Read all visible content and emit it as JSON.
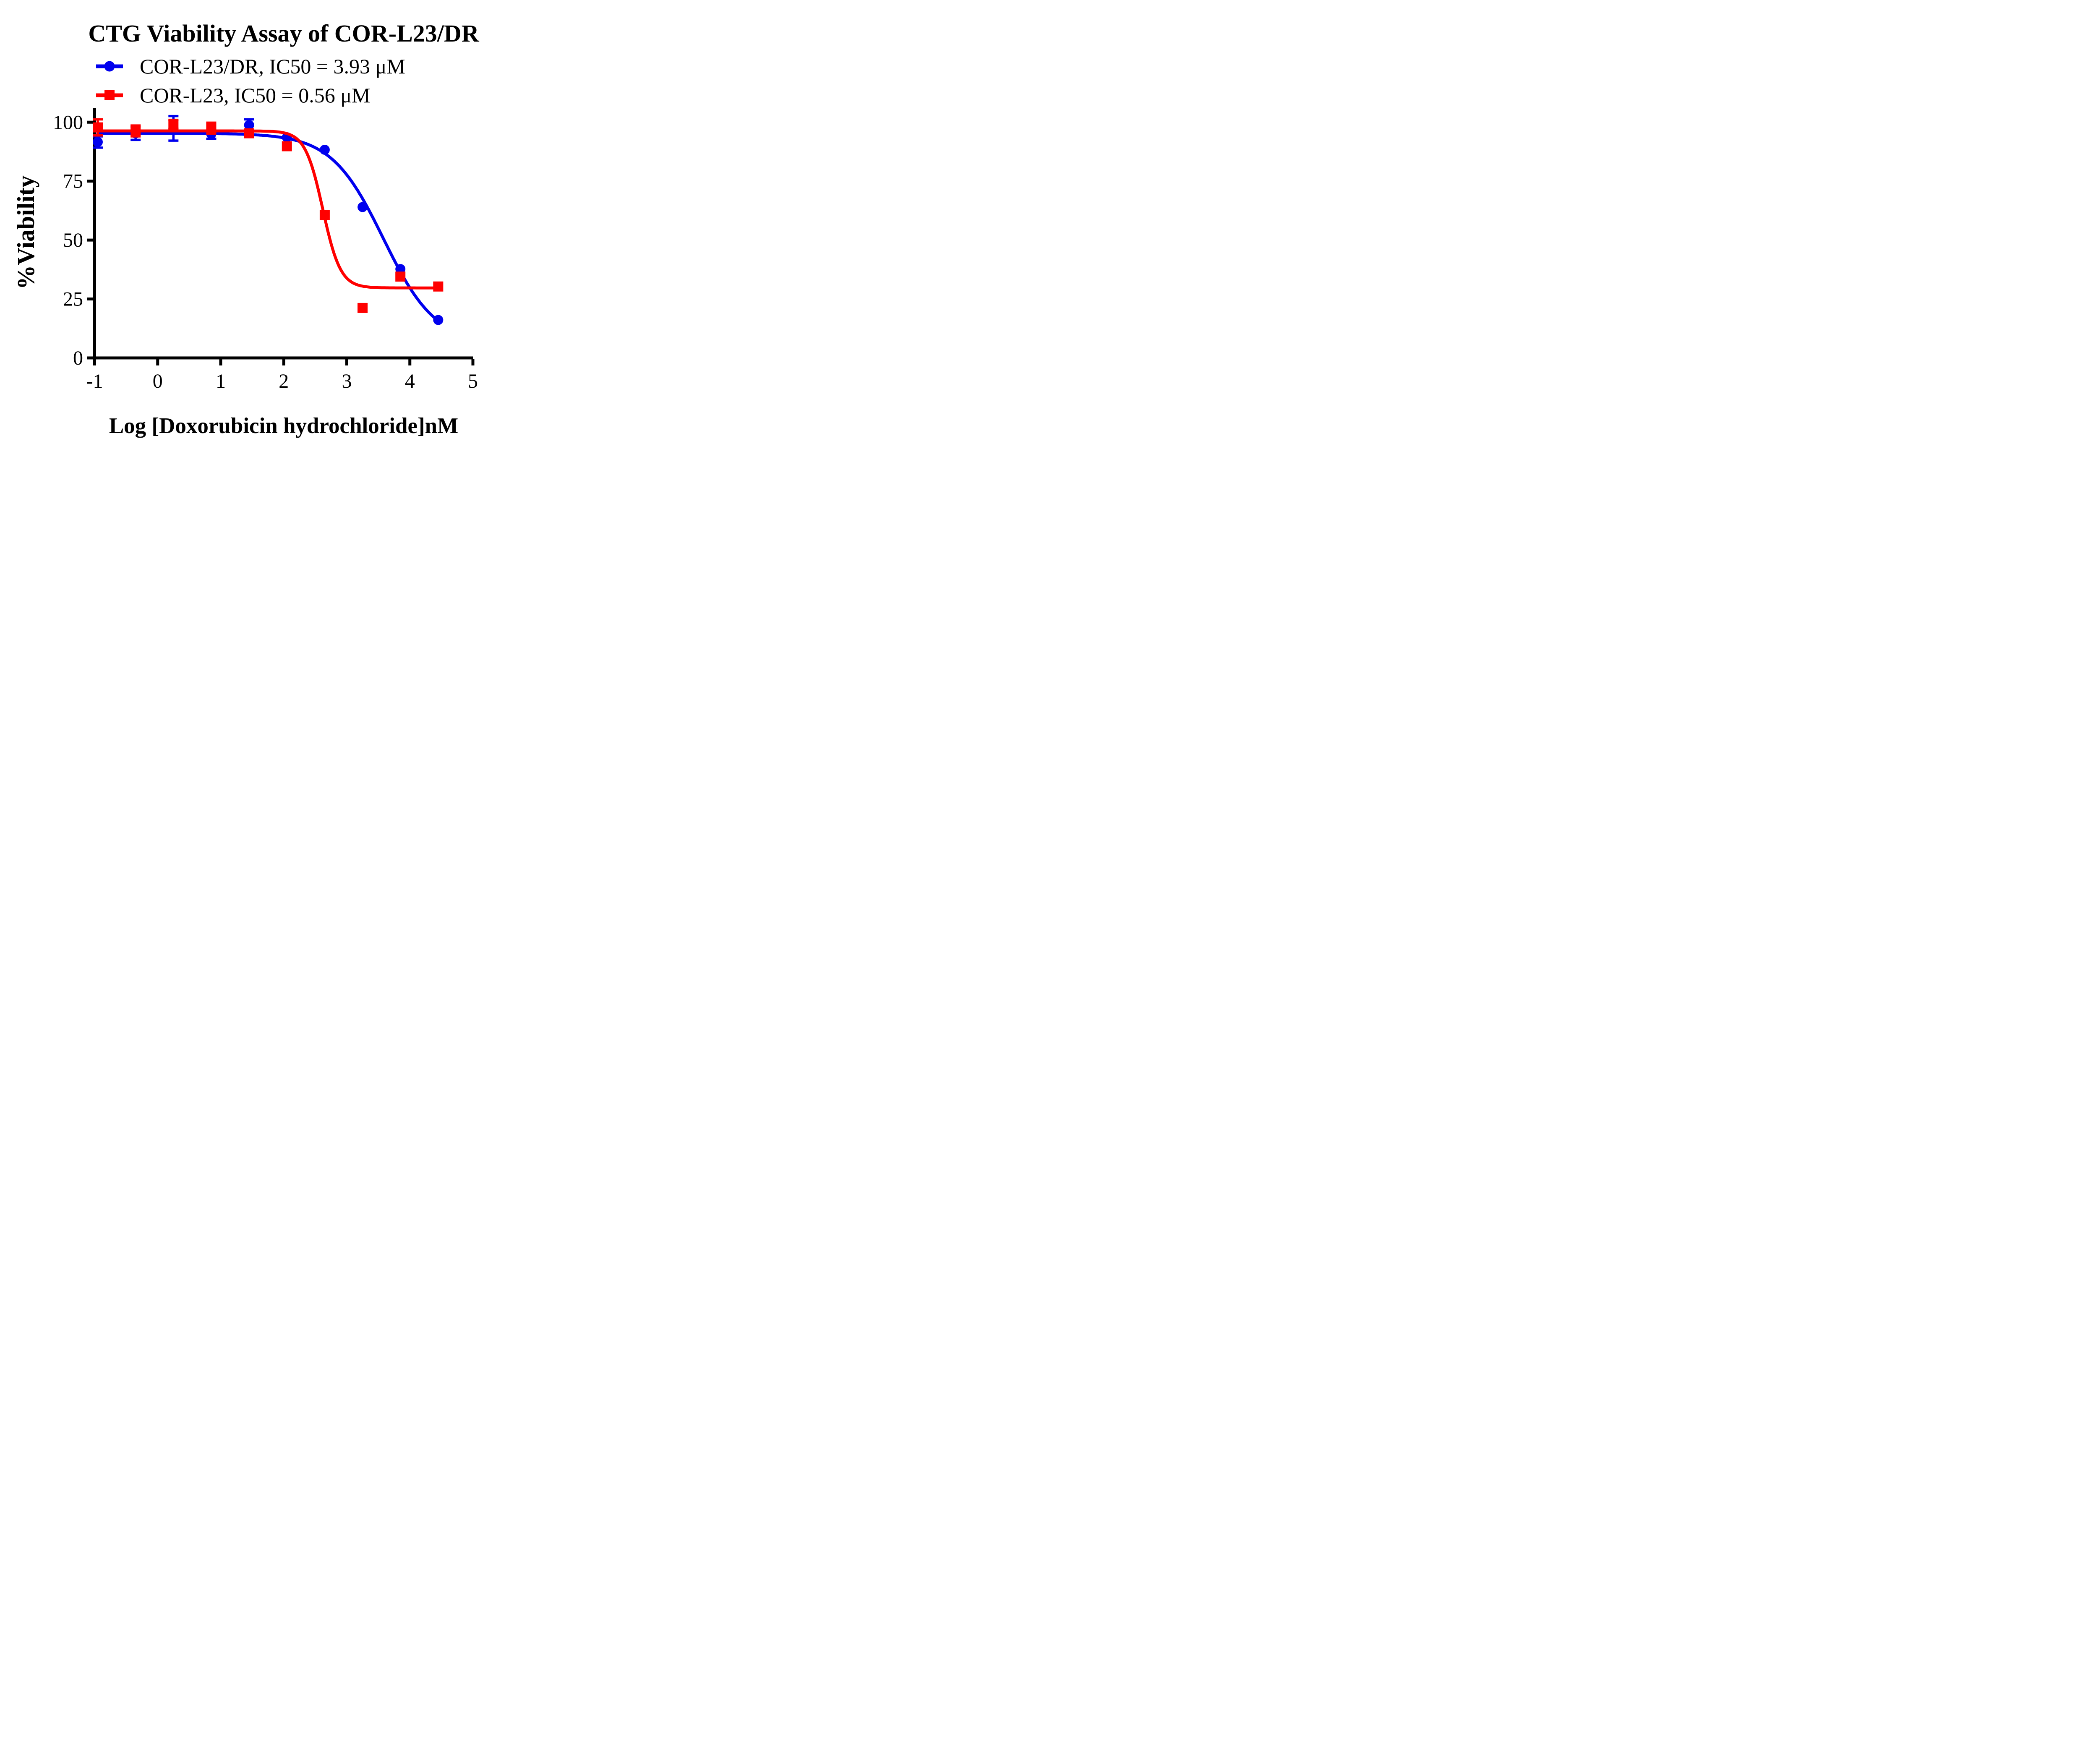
{
  "title": "CTG Viability Assay of COR-L23/DR",
  "colors": {
    "series1": "#0000ee",
    "series2": "#ff0000",
    "axis": "#000000",
    "background": "#ffffff"
  },
  "legend": [
    {
      "label": "COR-L23/DR, IC50 = 3.93 μM",
      "marker": "circle",
      "color": "#0000ee"
    },
    {
      "label": "COR-L23, IC50 = 0.56 μM",
      "marker": "square",
      "color": "#ff0000"
    }
  ],
  "chart_data": {
    "type": "scatter",
    "subtype": "dose-response-with-sigmoid-fit",
    "title": "CTG Viability Assay of COR-L23/DR",
    "xlabel": "Log [Doxorubicin hydrochloride]nM",
    "ylabel": "%Viability",
    "xlim": [
      -1,
      5
    ],
    "ylim": [
      0,
      100
    ],
    "xticks": [
      -1,
      0,
      1,
      2,
      3,
      4,
      5
    ],
    "yticks": [
      0,
      25,
      50,
      75,
      100
    ],
    "grid": false,
    "legend_position": "top-left",
    "x": [
      -0.95,
      -0.35,
      0.25,
      0.85,
      1.45,
      2.05,
      2.65,
      3.25,
      3.85,
      4.45
    ],
    "series": [
      {
        "name": "COR-L23/DR",
        "ic50_um": 3.93,
        "color": "#0000ee",
        "marker": "circle",
        "y": [
          91.6,
          95.3,
          97.4,
          95.0,
          98.8,
          93.6,
          88.3,
          64.0,
          37.7,
          16.1
        ],
        "yerr": [
          2.4,
          2.8,
          5.2,
          2.0,
          2.4,
          0,
          0,
          0,
          0,
          0
        ],
        "fit": {
          "top": 95.3,
          "bottom": 6.0,
          "logIC50": 3.58,
          "hillslope": 1.05
        }
      },
      {
        "name": "COR-L23",
        "ic50_um": 0.56,
        "color": "#ff0000",
        "marker": "square",
        "y": [
          97.8,
          96.3,
          99.0,
          97.5,
          95.3,
          89.8,
          60.7,
          21.2,
          34.5,
          30.3
        ],
        "yerr": [
          3.4,
          2.3,
          2.0,
          2.3,
          1.2,
          0,
          0,
          0,
          0,
          0
        ],
        "fit": {
          "top": 96.3,
          "bottom": 29.7,
          "logIC50": 2.62,
          "hillslope": 3.1
        }
      }
    ]
  }
}
